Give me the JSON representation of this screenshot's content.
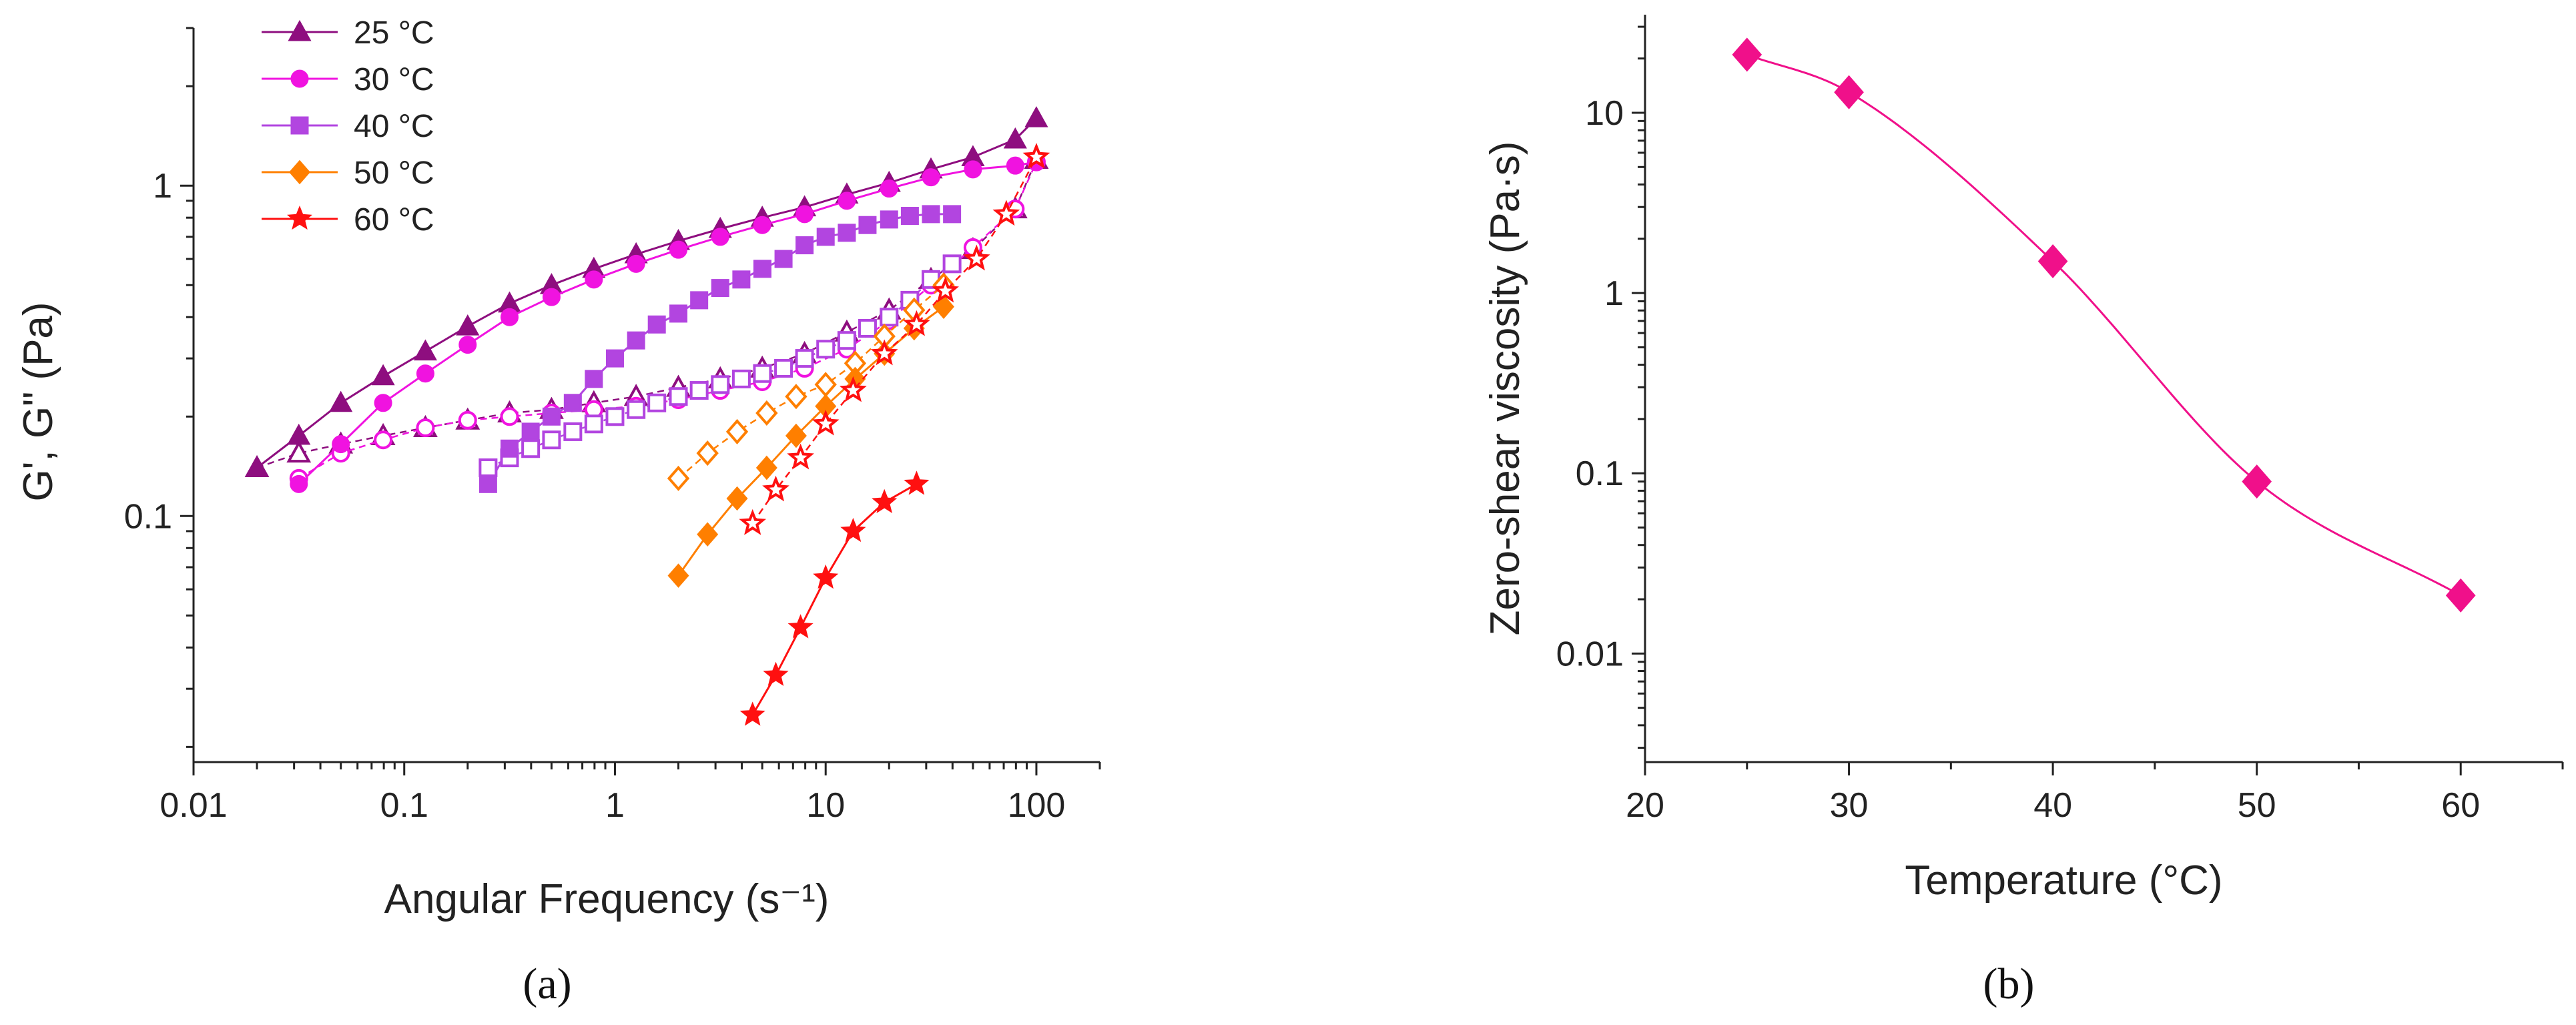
{
  "chart_data": [
    {
      "type": "scatter",
      "panel_label": "(a)",
      "xlabel": "Angular Frequency (s⁻¹)",
      "ylabel": "G', G\" (Pa)",
      "x_scale": "log",
      "y_scale": "log",
      "xlim": [
        0.01,
        200
      ],
      "ylim": [
        0.018,
        3.0
      ],
      "x_ticks": [
        0.01,
        0.1,
        1,
        10,
        100
      ],
      "x_tick_labels": [
        "0.01",
        "0.1",
        "1",
        "10",
        "100"
      ],
      "y_ticks": [
        0.1,
        1
      ],
      "y_tick_labels": [
        "0.1",
        "1"
      ],
      "legend_position": "top-left",
      "series": [
        {
          "name": "25 °C",
          "color": "#8e0e7f",
          "marker": "triangle",
          "x": [
            0.02,
            0.0316,
            0.05,
            0.0794,
            0.126,
            0.2,
            0.316,
            0.5,
            0.794,
            1.26,
            2,
            3.16,
            5,
            7.94,
            12.6,
            20,
            31.6,
            50,
            79.4,
            100
          ],
          "G1": [
            0.14,
            0.175,
            0.22,
            0.265,
            0.315,
            0.375,
            0.44,
            0.5,
            0.56,
            0.62,
            0.68,
            0.74,
            0.8,
            0.86,
            0.94,
            1.02,
            1.12,
            1.22,
            1.38,
            1.6
          ],
          "G2": [
            0.14,
            0.155,
            0.165,
            0.175,
            0.185,
            0.195,
            0.205,
            0.21,
            0.22,
            0.23,
            0.245,
            0.26,
            0.28,
            0.31,
            0.36,
            0.42,
            0.52,
            0.64,
            0.85,
            1.2
          ]
        },
        {
          "name": "30 °C",
          "color": "#f013e0",
          "marker": "circle",
          "x": [
            0.0316,
            0.05,
            0.0794,
            0.126,
            0.2,
            0.316,
            0.5,
            0.794,
            1.26,
            2,
            3.16,
            5,
            7.94,
            12.6,
            20,
            31.6,
            50,
            79.4,
            100
          ],
          "G1": [
            0.125,
            0.165,
            0.22,
            0.27,
            0.33,
            0.4,
            0.46,
            0.52,
            0.58,
            0.64,
            0.7,
            0.76,
            0.82,
            0.9,
            0.98,
            1.06,
            1.12,
            1.15,
            1.18
          ],
          "G2": [
            0.13,
            0.155,
            0.17,
            0.185,
            0.195,
            0.2,
            0.205,
            0.21,
            0.215,
            0.225,
            0.24,
            0.255,
            0.28,
            0.32,
            0.39,
            0.5,
            0.65,
            0.85,
            1.18
          ]
        },
        {
          "name": "40 °C",
          "color": "#b245e0",
          "marker": "square",
          "x": [
            0.25,
            0.316,
            0.398,
            0.5,
            0.631,
            0.794,
            1,
            1.26,
            1.58,
            2,
            2.51,
            3.16,
            3.98,
            5.01,
            6.31,
            7.94,
            10,
            12.6,
            15.8,
            20,
            25.1,
            31.6,
            39.8
          ],
          "G1": [
            0.125,
            0.16,
            0.18,
            0.2,
            0.22,
            0.26,
            0.3,
            0.34,
            0.38,
            0.41,
            0.45,
            0.49,
            0.52,
            0.56,
            0.6,
            0.66,
            0.7,
            0.72,
            0.76,
            0.79,
            0.81,
            0.82,
            0.82
          ],
          "G2": [
            0.14,
            0.15,
            0.16,
            0.17,
            0.18,
            0.19,
            0.2,
            0.21,
            0.22,
            0.23,
            0.24,
            0.25,
            0.26,
            0.27,
            0.28,
            0.3,
            0.32,
            0.34,
            0.37,
            0.4,
            0.45,
            0.52,
            0.58
          ]
        },
        {
          "name": "50 °C",
          "color": "#ff7f00",
          "marker": "diamond",
          "x": [
            2,
            2.75,
            3.8,
            5.25,
            7.24,
            10,
            13.8,
            19,
            26.3,
            36.3
          ],
          "G1": [
            0.066,
            0.088,
            0.113,
            0.14,
            0.175,
            0.215,
            0.26,
            0.31,
            0.37,
            0.43
          ],
          "G2": [
            0.13,
            0.155,
            0.18,
            0.205,
            0.23,
            0.25,
            0.29,
            0.35,
            0.42,
            0.5
          ]
        },
        {
          "name": "60 °C",
          "color": "#ff1010",
          "marker": "star",
          "x": [
            4.5,
            5.8,
            7.6,
            10,
            13.5,
            19,
            27
          ],
          "G1": [
            0.025,
            0.033,
            0.046,
            0.065,
            0.09,
            0.11,
            0.125
          ],
          "G2": [
            0.095,
            0.12,
            0.15,
            0.19,
            0.24,
            0.31,
            0.38
          ],
          "G2_extra_x": [
            37,
            52,
            72,
            100
          ],
          "G2_extra": [
            0.48,
            0.6,
            0.82,
            1.22
          ]
        }
      ]
    },
    {
      "type": "scatter",
      "panel_label": "(b)",
      "xlabel": "Temperature (°C)",
      "ylabel": "Zero-shear viscosity (Pa·s)",
      "x_scale": "linear",
      "y_scale": "log",
      "xlim": [
        20,
        65
      ],
      "ylim": [
        0.0025,
        35
      ],
      "x_ticks": [
        20,
        30,
        40,
        50,
        60
      ],
      "x_tick_labels": [
        "20",
        "30",
        "40",
        "50",
        "60"
      ],
      "y_ticks": [
        0.01,
        0.1,
        1,
        10
      ],
      "y_tick_labels": [
        "0.01",
        "0.1",
        "1",
        "10"
      ],
      "series": [
        {
          "color": "#f0108a",
          "marker": "diamond",
          "fit_line": "smooth",
          "x": [
            25,
            30,
            40,
            50,
            60
          ],
          "y": [
            21,
            13,
            1.5,
            0.09,
            0.021
          ]
        }
      ]
    }
  ]
}
